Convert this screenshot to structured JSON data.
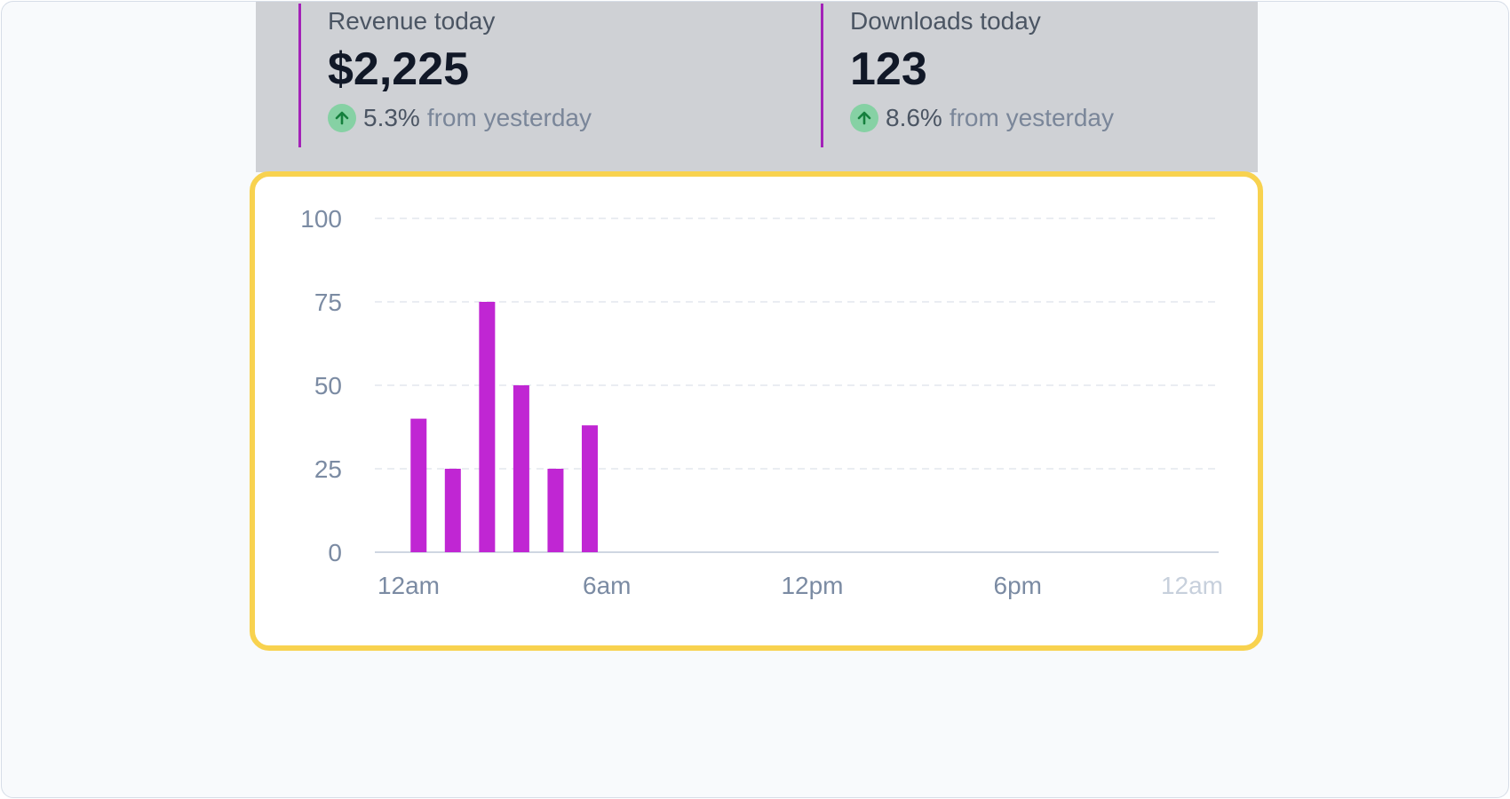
{
  "stats": [
    {
      "label": "Revenue today",
      "value": "$2,225",
      "change_pct": "5.3%",
      "change_text": "from yesterday",
      "trend_icon": "arrow-up-icon"
    },
    {
      "label": "Downloads today",
      "value": "123",
      "change_pct": "8.6%",
      "change_text": "from yesterday",
      "trend_icon": "arrow-up-icon"
    }
  ],
  "colors": {
    "accent": "#c026d3",
    "border_accent": "#a322b8",
    "highlight": "#f8d24f",
    "trend_up_bg": "#86d1a4",
    "trend_up_fg": "#15803d"
  },
  "chart_data": {
    "type": "bar",
    "y_ticks": [
      "100",
      "75",
      "50",
      "25",
      "0"
    ],
    "x_ticks": [
      "12am",
      "6am",
      "12pm",
      "6pm",
      "12am"
    ],
    "ylim": [
      0,
      100
    ],
    "xlim_hours": [
      0,
      24
    ],
    "grid": true,
    "bars": [
      {
        "hour": 1,
        "value": 40
      },
      {
        "hour": 2,
        "value": 25
      },
      {
        "hour": 3,
        "value": 75
      },
      {
        "hour": 4,
        "value": 50
      },
      {
        "hour": 5,
        "value": 25
      },
      {
        "hour": 6,
        "value": 38
      }
    ]
  }
}
